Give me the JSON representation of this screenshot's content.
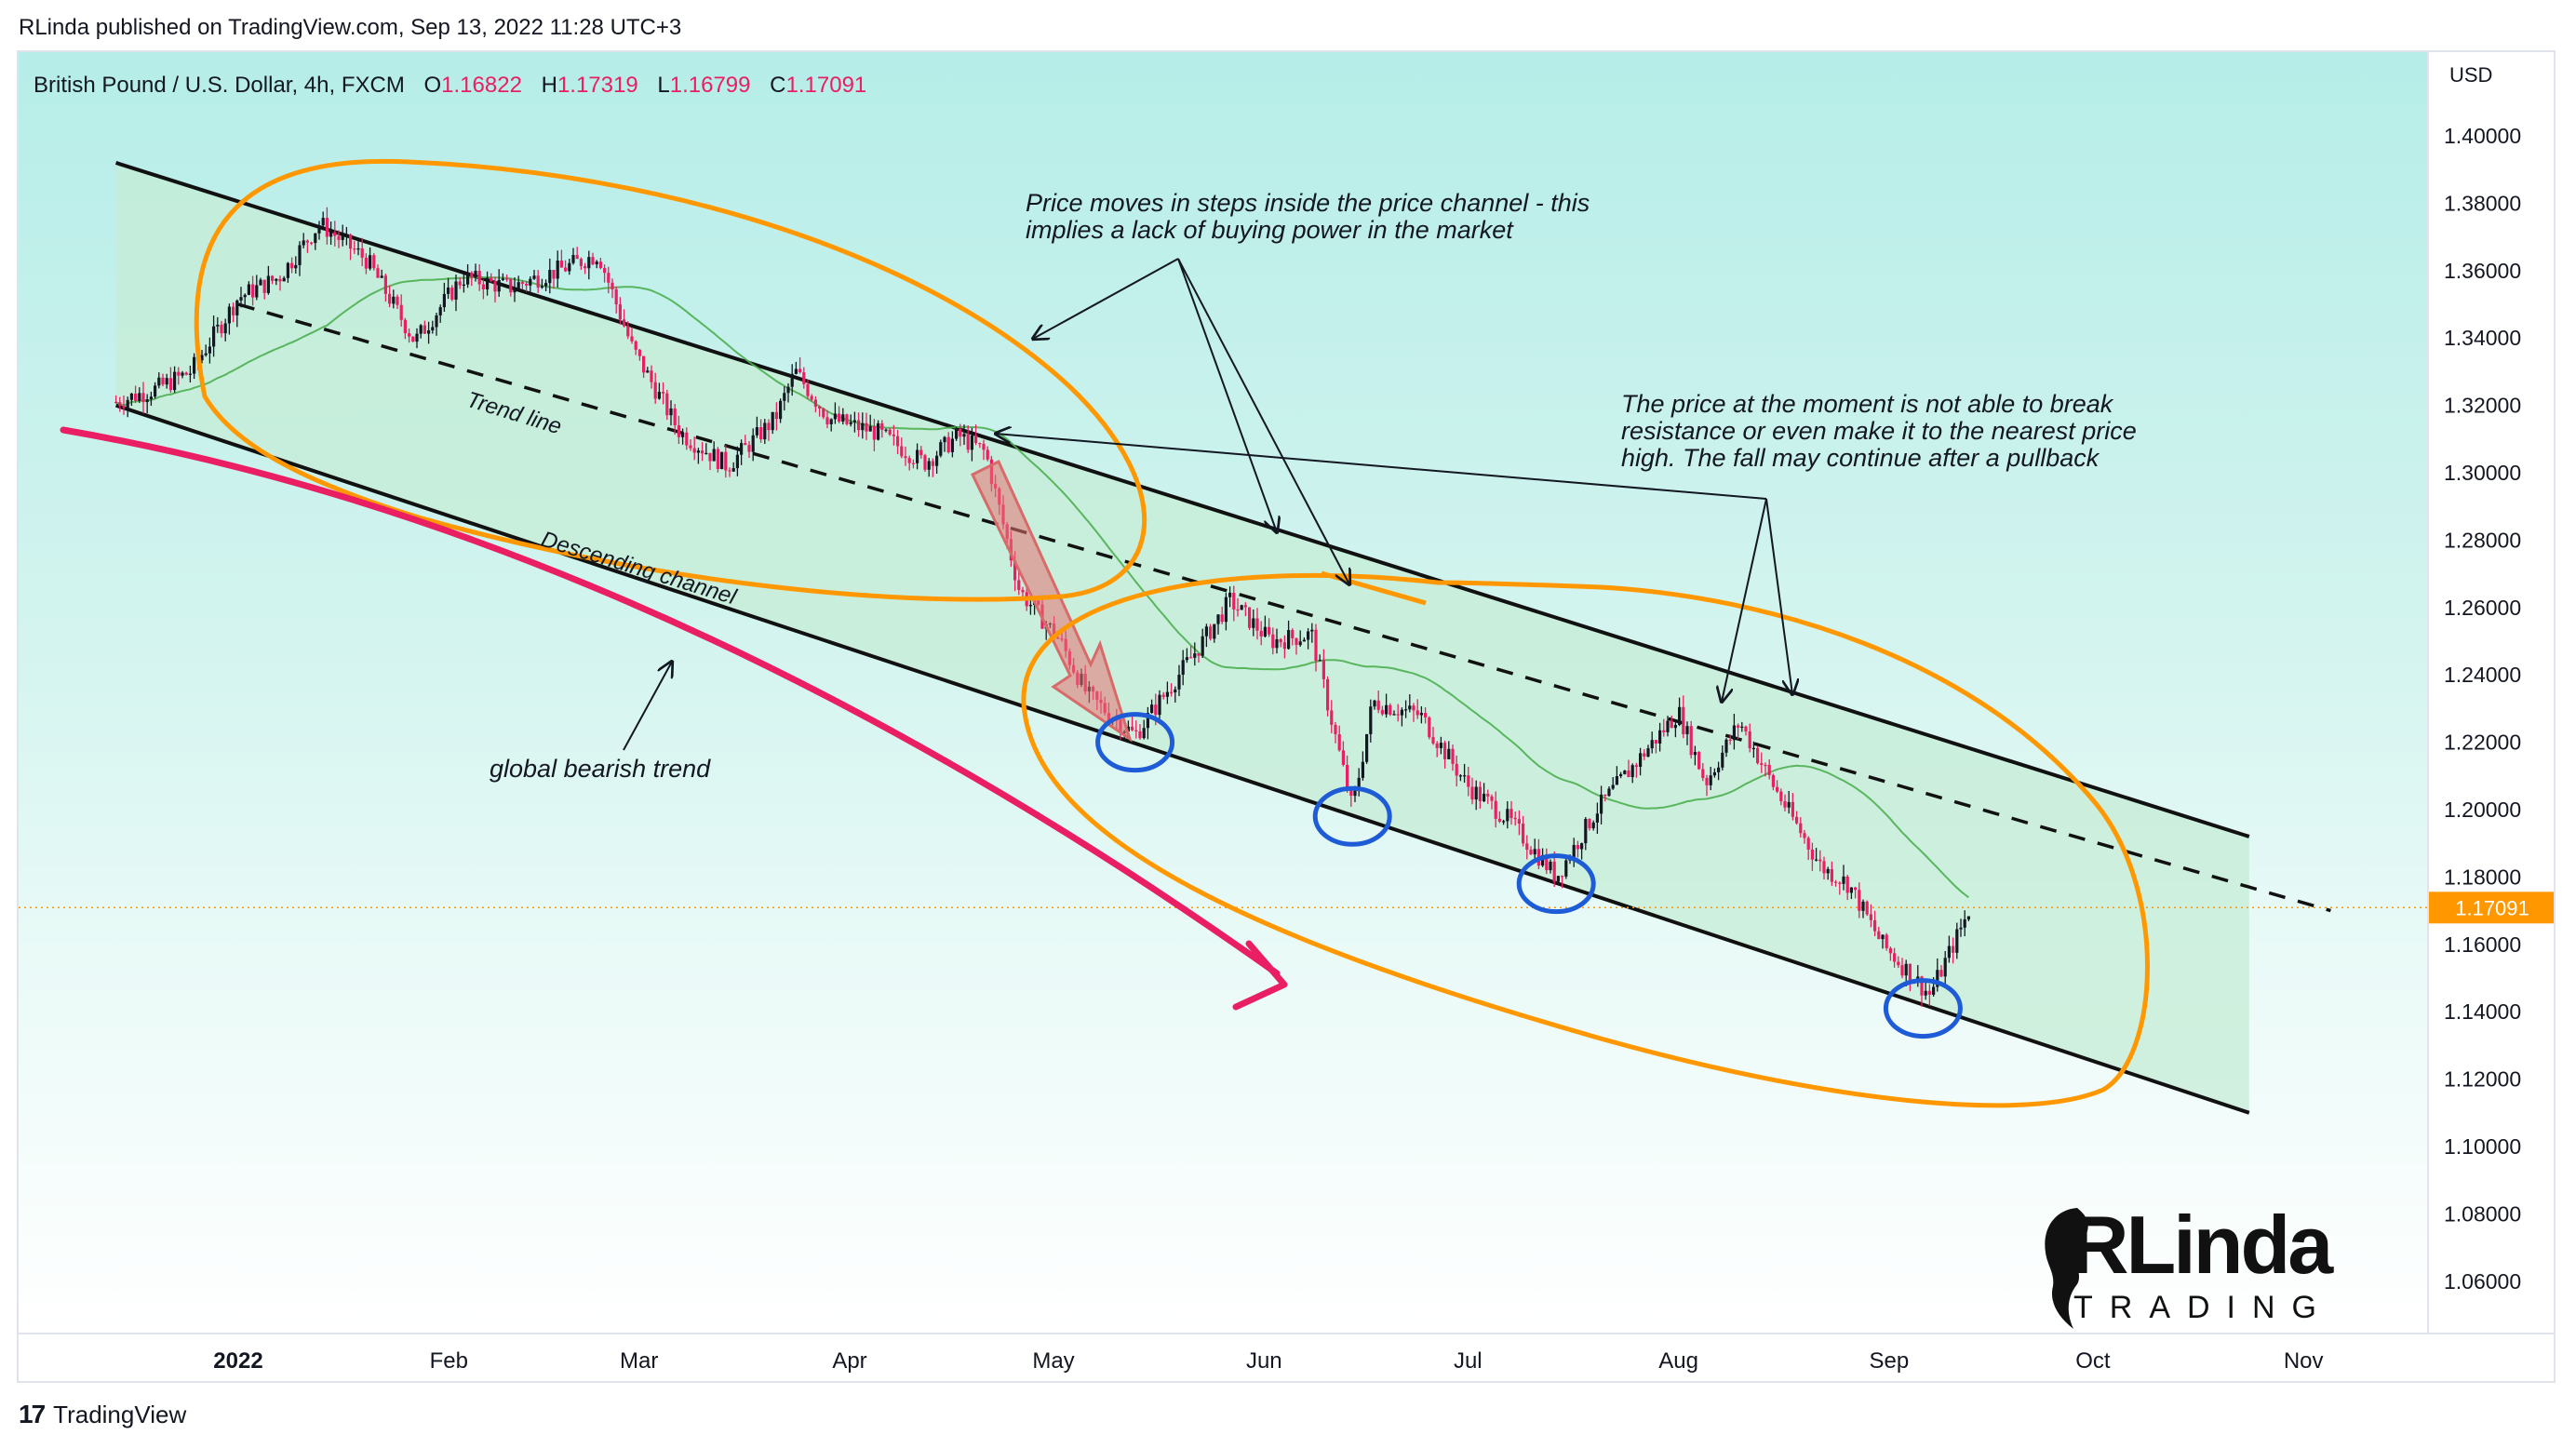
{
  "header": {
    "published": "RLinda published on TradingView.com, Sep 13, 2022 11:28 UTC+3"
  },
  "legend": {
    "symbol": "British Pound / U.S. Dollar, 4h, FXCM",
    "open_label": "O",
    "open": "1.16822",
    "high_label": "H",
    "high": "1.17319",
    "low_label": "L",
    "low": "1.16799",
    "close_label": "C",
    "close": "1.17091"
  },
  "axis": {
    "currency": "USD",
    "last_price_label": "1.17091"
  },
  "annotations": {
    "steps_line1": "Price moves in steps inside the price channel - this",
    "steps_line2": "implies a lack of buying power in the market",
    "resist_line1": "The price at the moment is not able to break",
    "resist_line2": "resistance or even make it to the nearest price",
    "resist_line3": "high. The fall may continue after a pullback",
    "trend_line": "Trend line",
    "descending_channel": "Descending channel",
    "global_trend": "global bearish trend"
  },
  "brand": {
    "main": "RLinda",
    "sub": "TRADING"
  },
  "footer": {
    "tv_logo": "17",
    "tv_text": "TradingView"
  },
  "colors": {
    "candle_up": "#131722",
    "candle_down": "#e91e63",
    "ma": "#4caf50",
    "channel_fill": "#c8ecd9",
    "orange": "#ff9800",
    "blue": "#1e5bd6",
    "trend_arrow": "#e91e63",
    "price_tag": "#ff9800"
  },
  "chart_data": {
    "type": "candlestick",
    "title": "British Pound / U.S. Dollar, 4h, FXCM",
    "x_ticks": [
      "2022",
      "Feb",
      "Mar",
      "Apr",
      "May",
      "Jun",
      "Jul",
      "Aug",
      "Sep",
      "Oct",
      "Nov"
    ],
    "y_ticks": [
      "1.40000",
      "1.38000",
      "1.36000",
      "1.34000",
      "1.32000",
      "1.30000",
      "1.28000",
      "1.26000",
      "1.24000",
      "1.22000",
      "1.20000",
      "1.18000",
      "1.16000",
      "1.14000",
      "1.12000",
      "1.10000",
      "1.08000",
      "1.06000"
    ],
    "ylim": [
      1.045,
      1.41
    ],
    "last_price": 1.17091,
    "ohlc_last": {
      "open": 1.16822,
      "high": 1.17319,
      "low": 1.16799,
      "close": 1.17091
    },
    "price_path": [
      [
        "2021-12-14",
        1.321
      ],
      [
        "2021-12-20",
        1.325
      ],
      [
        "2021-12-25",
        1.33
      ],
      [
        "2022-01-01",
        1.352
      ],
      [
        "2022-01-07",
        1.358
      ],
      [
        "2022-01-13",
        1.374
      ],
      [
        "2022-01-20",
        1.363
      ],
      [
        "2022-01-27",
        1.339
      ],
      [
        "2022-02-03",
        1.358
      ],
      [
        "2022-02-10",
        1.355
      ],
      [
        "2022-02-17",
        1.36
      ],
      [
        "2022-02-23",
        1.365
      ],
      [
        "2022-02-28",
        1.337
      ],
      [
        "2022-03-07",
        1.312
      ],
      [
        "2022-03-14",
        1.302
      ],
      [
        "2022-03-21",
        1.316
      ],
      [
        "2022-03-24",
        1.33
      ],
      [
        "2022-03-29",
        1.316
      ],
      [
        "2022-04-05",
        1.312
      ],
      [
        "2022-04-12",
        1.303
      ],
      [
        "2022-04-17",
        1.311
      ],
      [
        "2022-04-21",
        1.306
      ],
      [
        "2022-04-26",
        1.265
      ],
      [
        "2022-05-02",
        1.25
      ],
      [
        "2022-05-06",
        1.234
      ],
      [
        "2022-05-13",
        1.222
      ],
      [
        "2022-05-18",
        1.236
      ],
      [
        "2022-05-23",
        1.25
      ],
      [
        "2022-05-27",
        1.262
      ],
      [
        "2022-06-02",
        1.25
      ],
      [
        "2022-06-08",
        1.252
      ],
      [
        "2022-06-14",
        1.2
      ],
      [
        "2022-06-17",
        1.232
      ],
      [
        "2022-06-24",
        1.228
      ],
      [
        "2022-07-01",
        1.207
      ],
      [
        "2022-07-07",
        1.197
      ],
      [
        "2022-07-14",
        1.18
      ],
      [
        "2022-07-20",
        1.2
      ],
      [
        "2022-07-27",
        1.217
      ],
      [
        "2022-08-01",
        1.229
      ],
      [
        "2022-08-05",
        1.208
      ],
      [
        "2022-08-10",
        1.226
      ],
      [
        "2022-08-15",
        1.207
      ],
      [
        "2022-08-22",
        1.183
      ],
      [
        "2022-08-26",
        1.178
      ],
      [
        "2022-08-31",
        1.16
      ],
      [
        "2022-09-07",
        1.145
      ],
      [
        "2022-09-13",
        1.171
      ]
    ],
    "series": [
      {
        "name": "",
        "kind": "moving_average",
        "color": "#4caf50"
      }
    ],
    "drawings": {
      "descending_channel_upper": [
        [
          "2021-12-14",
          1.392
        ],
        [
          "2022-10-24",
          1.192
        ]
      ],
      "descending_channel_lower": [
        [
          "2021-12-14",
          1.32
        ],
        [
          "2022-10-24",
          1.11
        ]
      ],
      "trend_line_dashed": [
        [
          "2022-01-01",
          1.35
        ],
        [
          "2022-11-05",
          1.17
        ]
      ],
      "support_touches": [
        [
          "2022-05-13",
          1.22
        ],
        [
          "2022-06-14",
          1.198
        ],
        [
          "2022-07-14",
          1.178
        ],
        [
          "2022-09-06",
          1.141
        ]
      ]
    }
  }
}
